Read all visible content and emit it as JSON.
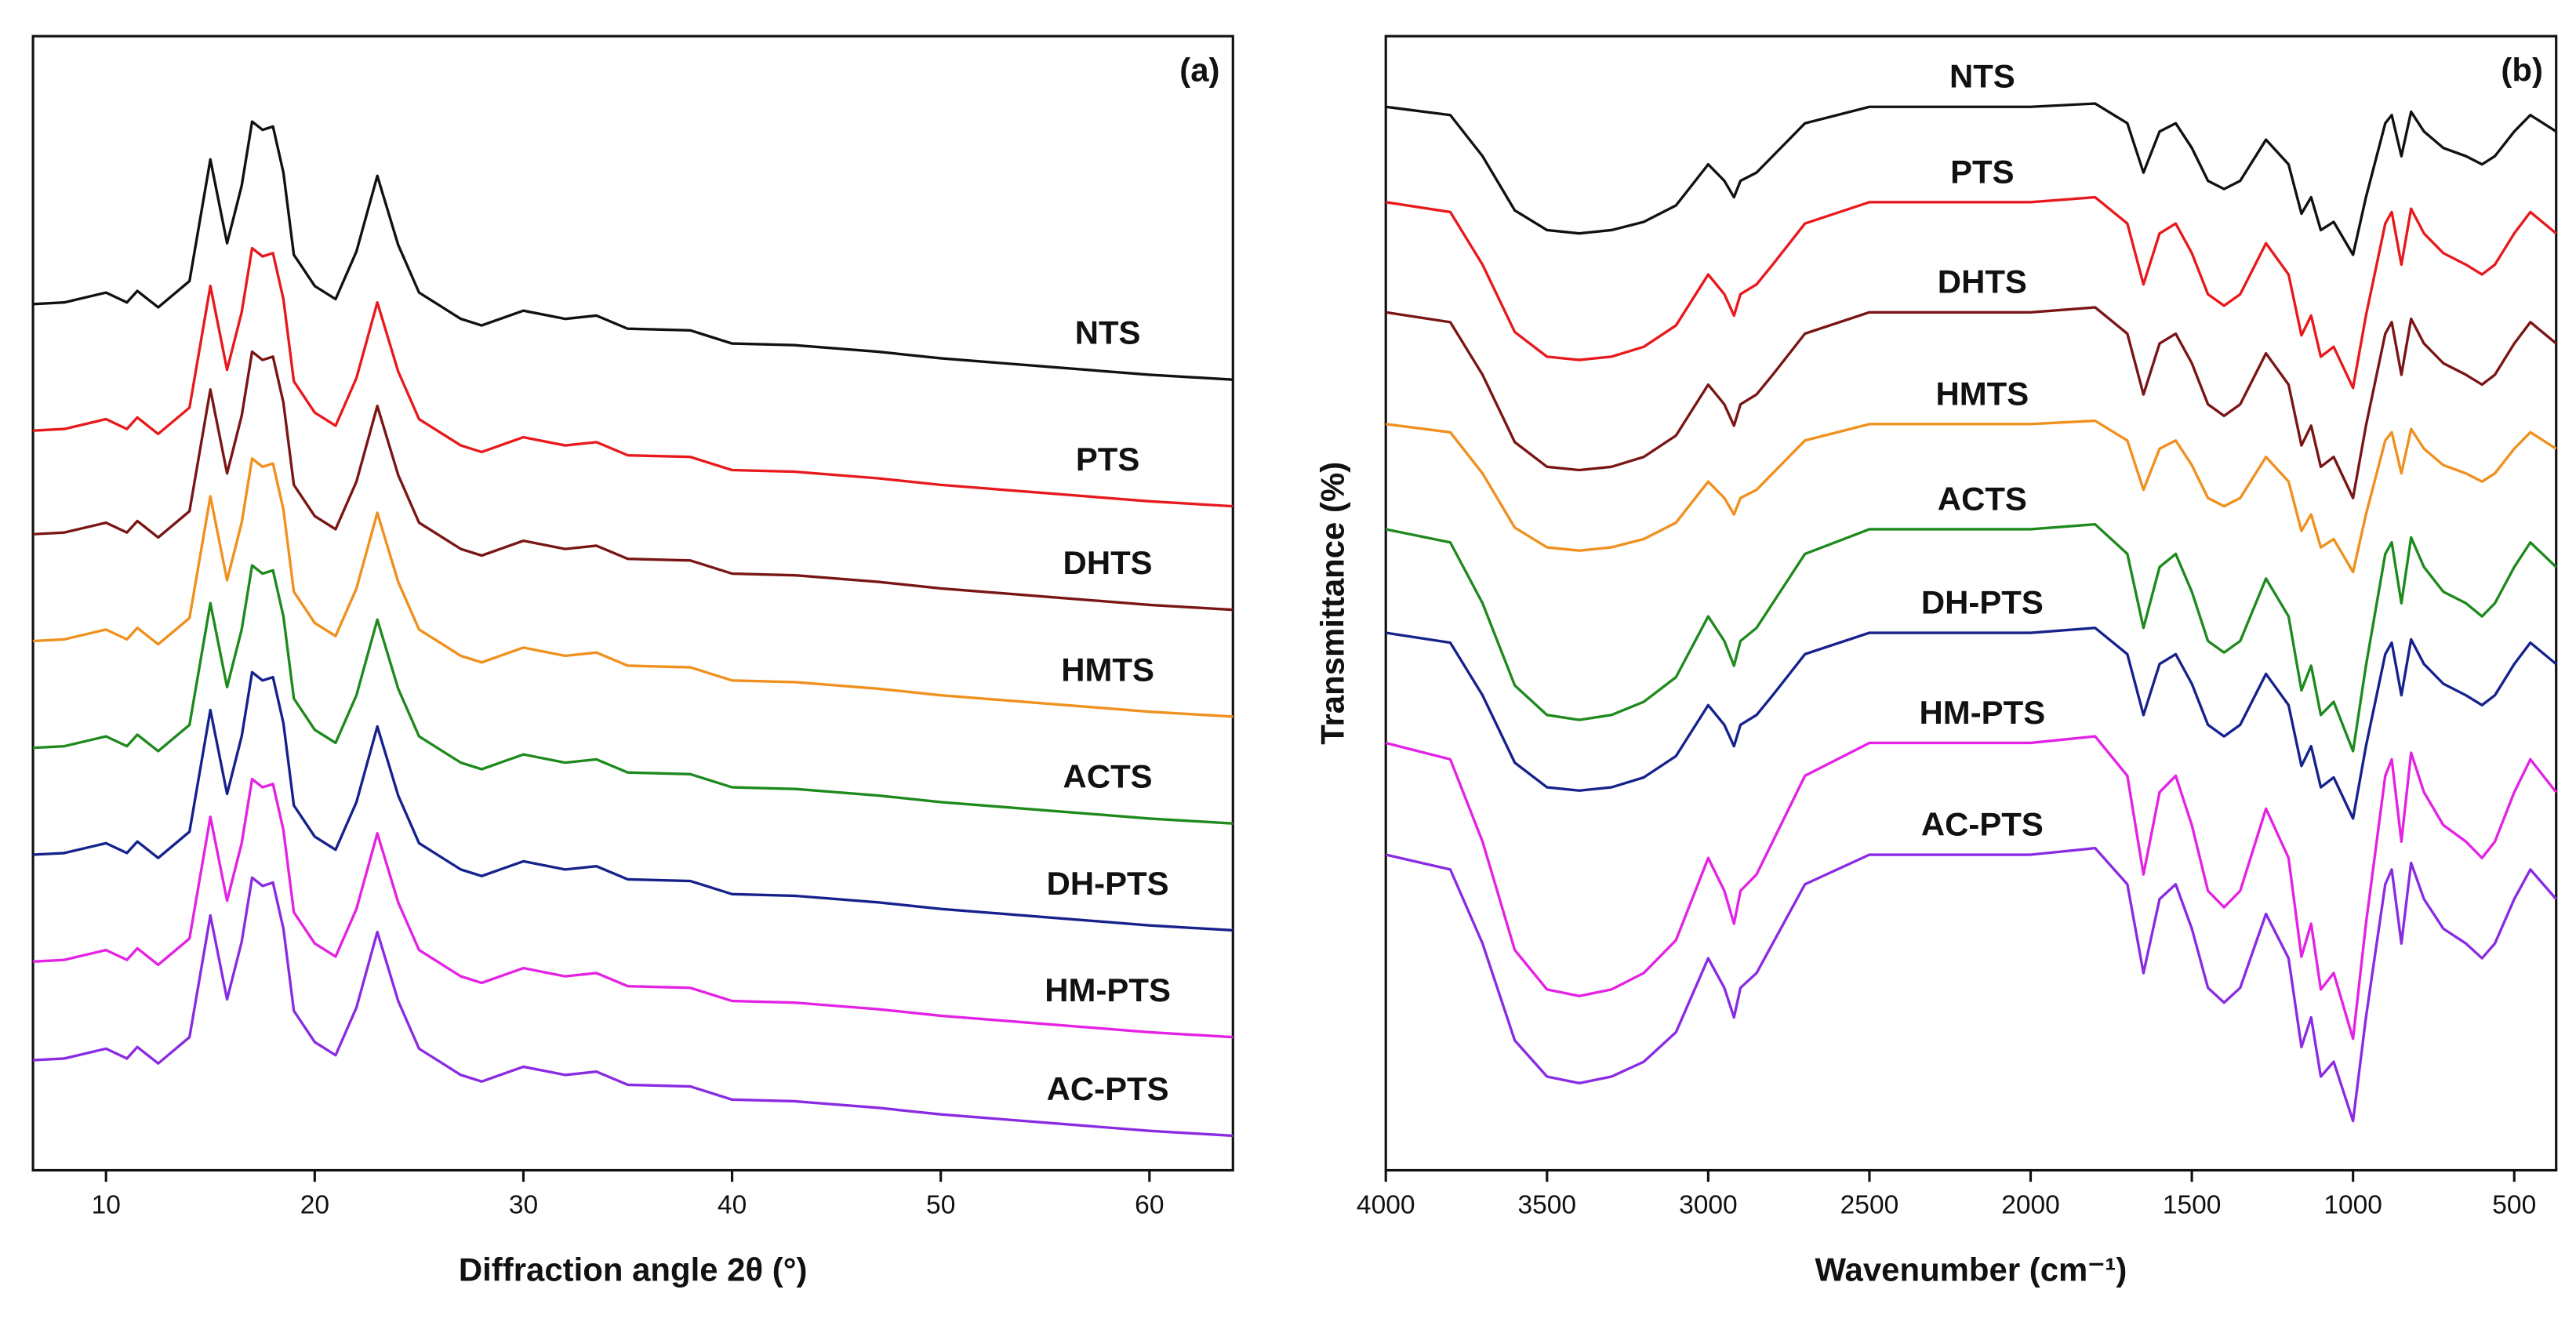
{
  "chart_data": [
    {
      "type": "line",
      "title": "(a)",
      "xlabel": "Diffraction angle 2θ (°)",
      "x": [
        6.5,
        8,
        10,
        11,
        11.5,
        12.5,
        14,
        15,
        15.8,
        16.5,
        17,
        17.5,
        18,
        18.5,
        19,
        20,
        21,
        22,
        23,
        24,
        25,
        26,
        27,
        28,
        30,
        32,
        33.5,
        35,
        38,
        40,
        43,
        47,
        50,
        55,
        60,
        64
      ],
      "xlim": [
        6.5,
        64
      ],
      "ylim": [
        0,
        690
      ],
      "xticks": [
        10,
        20,
        30,
        40,
        50,
        60
      ],
      "series": [
        {
          "name": "NTS",
          "color": "#111111",
          "values": [
            527,
            528,
            534,
            528,
            535,
            525,
            541,
            615,
            564,
            599,
            638,
            633,
            635,
            607,
            557,
            538,
            530,
            559,
            605,
            563,
            534,
            526,
            518,
            514,
            523,
            518,
            520,
            512,
            511,
            503,
            502,
            498,
            494,
            489,
            484,
            481
          ]
        },
        {
          "name": "PTS",
          "color": "#e8191c",
          "values": [
            450,
            451,
            457,
            451,
            458,
            448,
            464,
            538,
            487,
            522,
            561,
            556,
            558,
            530,
            480,
            461,
            453,
            482,
            528,
            486,
            457,
            449,
            441,
            437,
            446,
            441,
            443,
            435,
            434,
            426,
            425,
            421,
            417,
            412,
            407,
            404
          ]
        },
        {
          "name": "DHTS",
          "color": "#7a1515",
          "values": [
            387,
            388,
            394,
            388,
            395,
            385,
            401,
            475,
            424,
            459,
            498,
            493,
            495,
            467,
            417,
            398,
            390,
            419,
            465,
            423,
            394,
            386,
            378,
            374,
            383,
            378,
            380,
            372,
            371,
            363,
            362,
            358,
            354,
            349,
            344,
            341
          ]
        },
        {
          "name": "HMTS",
          "color": "#f0901e",
          "values": [
            322,
            323,
            329,
            323,
            330,
            320,
            336,
            410,
            359,
            394,
            433,
            428,
            430,
            402,
            352,
            333,
            325,
            354,
            400,
            358,
            329,
            321,
            313,
            309,
            318,
            313,
            315,
            307,
            306,
            298,
            297,
            293,
            289,
            284,
            279,
            276
          ]
        },
        {
          "name": "ACTS",
          "color": "#1e8a1e",
          "values": [
            257,
            258,
            264,
            258,
            265,
            255,
            271,
            345,
            294,
            329,
            368,
            363,
            365,
            337,
            287,
            268,
            260,
            289,
            335,
            293,
            264,
            256,
            248,
            244,
            253,
            248,
            250,
            242,
            241,
            233,
            232,
            228,
            224,
            219,
            214,
            211
          ]
        },
        {
          "name": "DH-PTS",
          "color": "#16228c",
          "values": [
            192,
            193,
            199,
            193,
            200,
            190,
            206,
            280,
            229,
            264,
            303,
            298,
            300,
            272,
            222,
            203,
            195,
            224,
            270,
            228,
            199,
            191,
            183,
            179,
            188,
            183,
            185,
            177,
            176,
            168,
            167,
            163,
            159,
            154,
            149,
            146
          ]
        },
        {
          "name": "HM-PTS",
          "color": "#e422e4",
          "values": [
            127,
            128,
            134,
            128,
            135,
            125,
            141,
            215,
            164,
            199,
            238,
            233,
            235,
            207,
            157,
            138,
            130,
            159,
            205,
            163,
            134,
            126,
            118,
            114,
            123,
            118,
            120,
            112,
            111,
            103,
            102,
            98,
            94,
            89,
            84,
            81
          ]
        },
        {
          "name": "AC-PTS",
          "color": "#8a2be2",
          "values": [
            67,
            68,
            74,
            68,
            75,
            65,
            81,
            155,
            104,
            139,
            178,
            173,
            175,
            147,
            97,
            78,
            70,
            99,
            145,
            103,
            74,
            66,
            58,
            54,
            63,
            58,
            60,
            52,
            51,
            43,
            42,
            38,
            34,
            29,
            24,
            21
          ]
        }
      ]
    },
    {
      "type": "line",
      "title": "(b)",
      "xlabel": "Wavenumber (cm⁻¹)",
      "ylabel": "Transmittance (%)",
      "x": [
        4000,
        3800,
        3700,
        3600,
        3500,
        3400,
        3300,
        3200,
        3100,
        3000,
        2950,
        2920,
        2900,
        2850,
        2800,
        2700,
        2500,
        2000,
        1800,
        1700,
        1650,
        1600,
        1550,
        1500,
        1450,
        1400,
        1350,
        1270,
        1200,
        1160,
        1130,
        1100,
        1060,
        1000,
        960,
        900,
        880,
        850,
        820,
        780,
        720,
        650,
        600,
        560,
        500,
        450,
        370
      ],
      "xlim": [
        4000,
        370
      ],
      "ylim": [
        0,
        690
      ],
      "xticks": [
        4000,
        3500,
        3000,
        2500,
        2000,
        1500,
        1000,
        500
      ],
      "series": [
        {
          "name": "NTS",
          "color": "#111111",
          "values": [
            647,
            642,
            617,
            584,
            572,
            570,
            572,
            577,
            587,
            612,
            602,
            592,
            602,
            607,
            617,
            637,
            647,
            647,
            649,
            637,
            607,
            632,
            637,
            622,
            602,
            597,
            602,
            627,
            612,
            582,
            592,
            572,
            577,
            557,
            592,
            637,
            642,
            617,
            644,
            632,
            622,
            617,
            612,
            617,
            632,
            642,
            632
          ]
        },
        {
          "name": "PTS",
          "color": "#e8191c",
          "values": [
            589,
            583,
            551,
            510,
            495,
            493,
            495,
            501,
            514,
            545,
            533,
            520,
            533,
            539,
            551,
            576,
            589,
            589,
            592,
            576,
            539,
            570,
            576,
            558,
            533,
            526,
            533,
            564,
            545,
            508,
            520,
            495,
            501,
            476,
            520,
            576,
            583,
            551,
            585,
            570,
            558,
            551,
            545,
            551,
            570,
            583,
            570
          ]
        },
        {
          "name": "DHTS",
          "color": "#7a1515",
          "values": [
            522,
            516,
            484,
            443,
            428,
            426,
            428,
            434,
            447,
            478,
            466,
            453,
            466,
            472,
            484,
            509,
            522,
            522,
            525,
            509,
            472,
            503,
            509,
            491,
            466,
            459,
            466,
            497,
            478,
            441,
            453,
            428,
            434,
            409,
            453,
            509,
            516,
            484,
            518,
            503,
            491,
            484,
            478,
            484,
            503,
            516,
            503
          ]
        },
        {
          "name": "HMTS",
          "color": "#f0901e",
          "values": [
            454,
            449,
            424,
            391,
            379,
            377,
            379,
            384,
            394,
            419,
            409,
            399,
            409,
            414,
            424,
            444,
            454,
            454,
            456,
            444,
            414,
            439,
            444,
            429,
            409,
            404,
            409,
            434,
            419,
            389,
            399,
            379,
            384,
            364,
            399,
            444,
            449,
            424,
            451,
            439,
            429,
            424,
            419,
            424,
            439,
            449,
            439
          ]
        },
        {
          "name": "ACTS",
          "color": "#1e8a1e",
          "values": [
            390,
            382,
            345,
            295,
            277,
            274,
            277,
            285,
            300,
            337,
            322,
            307,
            322,
            330,
            345,
            375,
            390,
            390,
            393,
            375,
            330,
            367,
            375,
            352,
            322,
            315,
            322,
            360,
            337,
            292,
            307,
            277,
            285,
            255,
            307,
            375,
            382,
            345,
            385,
            367,
            352,
            345,
            337,
            345,
            367,
            382,
            367
          ]
        },
        {
          "name": "DH-PTS",
          "color": "#16228c",
          "values": [
            327,
            321,
            289,
            248,
            233,
            231,
            233,
            239,
            252,
            283,
            271,
            258,
            271,
            277,
            289,
            314,
            327,
            327,
            330,
            314,
            277,
            308,
            314,
            296,
            271,
            264,
            271,
            302,
            283,
            246,
            258,
            233,
            239,
            214,
            258,
            314,
            321,
            289,
            323,
            308,
            296,
            289,
            283,
            289,
            308,
            321,
            308
          ]
        },
        {
          "name": "HM-PTS",
          "color": "#e422e4",
          "values": [
            260,
            250,
            200,
            134,
            110,
            106,
            110,
            120,
            140,
            190,
            170,
            150,
            170,
            180,
            200,
            240,
            260,
            260,
            264,
            240,
            180,
            230,
            240,
            210,
            170,
            160,
            170,
            220,
            190,
            130,
            150,
            110,
            120,
            80,
            150,
            240,
            250,
            200,
            254,
            230,
            210,
            200,
            190,
            200,
            230,
            250,
            230
          ]
        },
        {
          "name": "AC-PTS",
          "color": "#8a2be2",
          "values": [
            192,
            183,
            138,
            79,
            57,
            53,
            57,
            66,
            84,
            129,
            111,
            93,
            111,
            120,
            138,
            174,
            192,
            192,
            196,
            174,
            120,
            165,
            174,
            147,
            111,
            102,
            111,
            156,
            129,
            75,
            93,
            57,
            66,
            30,
            93,
            174,
            183,
            138,
            187,
            165,
            147,
            138,
            129,
            138,
            165,
            183,
            165
          ]
        }
      ]
    }
  ]
}
